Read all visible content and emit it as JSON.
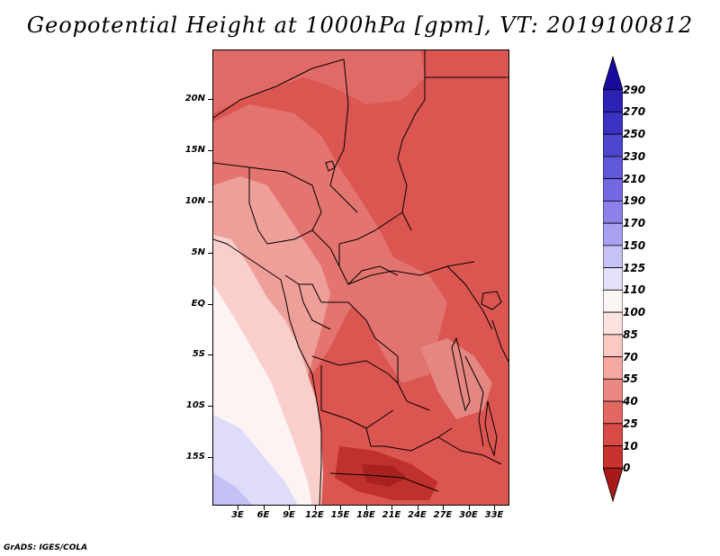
{
  "title": "Geopotential Height at 1000hPa [gpm], VT: 2019100812",
  "footer": "GrADS: IGES/COLA",
  "map": {
    "variable": "Geopotential Height",
    "level": "1000hPa",
    "units": "gpm",
    "valid_time": "2019100812",
    "lat_labels": [
      "20N",
      "15N",
      "10N",
      "5N",
      "EQ",
      "5S",
      "10S",
      "15S"
    ],
    "lon_labels": [
      "3E",
      "6E",
      "9E",
      "12E",
      "15E",
      "18E",
      "21E",
      "24E",
      "27E",
      "30E",
      "33E"
    ]
  },
  "colorbar": {
    "levels": [
      "290",
      "270",
      "250",
      "230",
      "210",
      "190",
      "170",
      "150",
      "125",
      "110",
      "100",
      "85",
      "70",
      "55",
      "40",
      "25",
      "10",
      "0"
    ],
    "colors": [
      "#1a0aa0",
      "#2b22b4",
      "#3a32c2",
      "#4d46cf",
      "#6058d8",
      "#7468e2",
      "#8c80ea",
      "#a8a0f0",
      "#c6c2f6",
      "#e2e0fa",
      "#fbf6f4",
      "#fde2df",
      "#fbc8c3",
      "#f5a8a2",
      "#ec8882",
      "#e26862",
      "#d84a45",
      "#c83330",
      "#a81818"
    ]
  },
  "colors": {
    "deep_red": "#b51f1f",
    "red": "#dc5651",
    "mid_red": "#e47570",
    "light_red": "#f0a7a2",
    "pale_pink": "#f9d2cf",
    "near_white": "#fdf3f2",
    "pale_blue": "#dedcf8",
    "light_blue": "#c4c0f4"
  }
}
